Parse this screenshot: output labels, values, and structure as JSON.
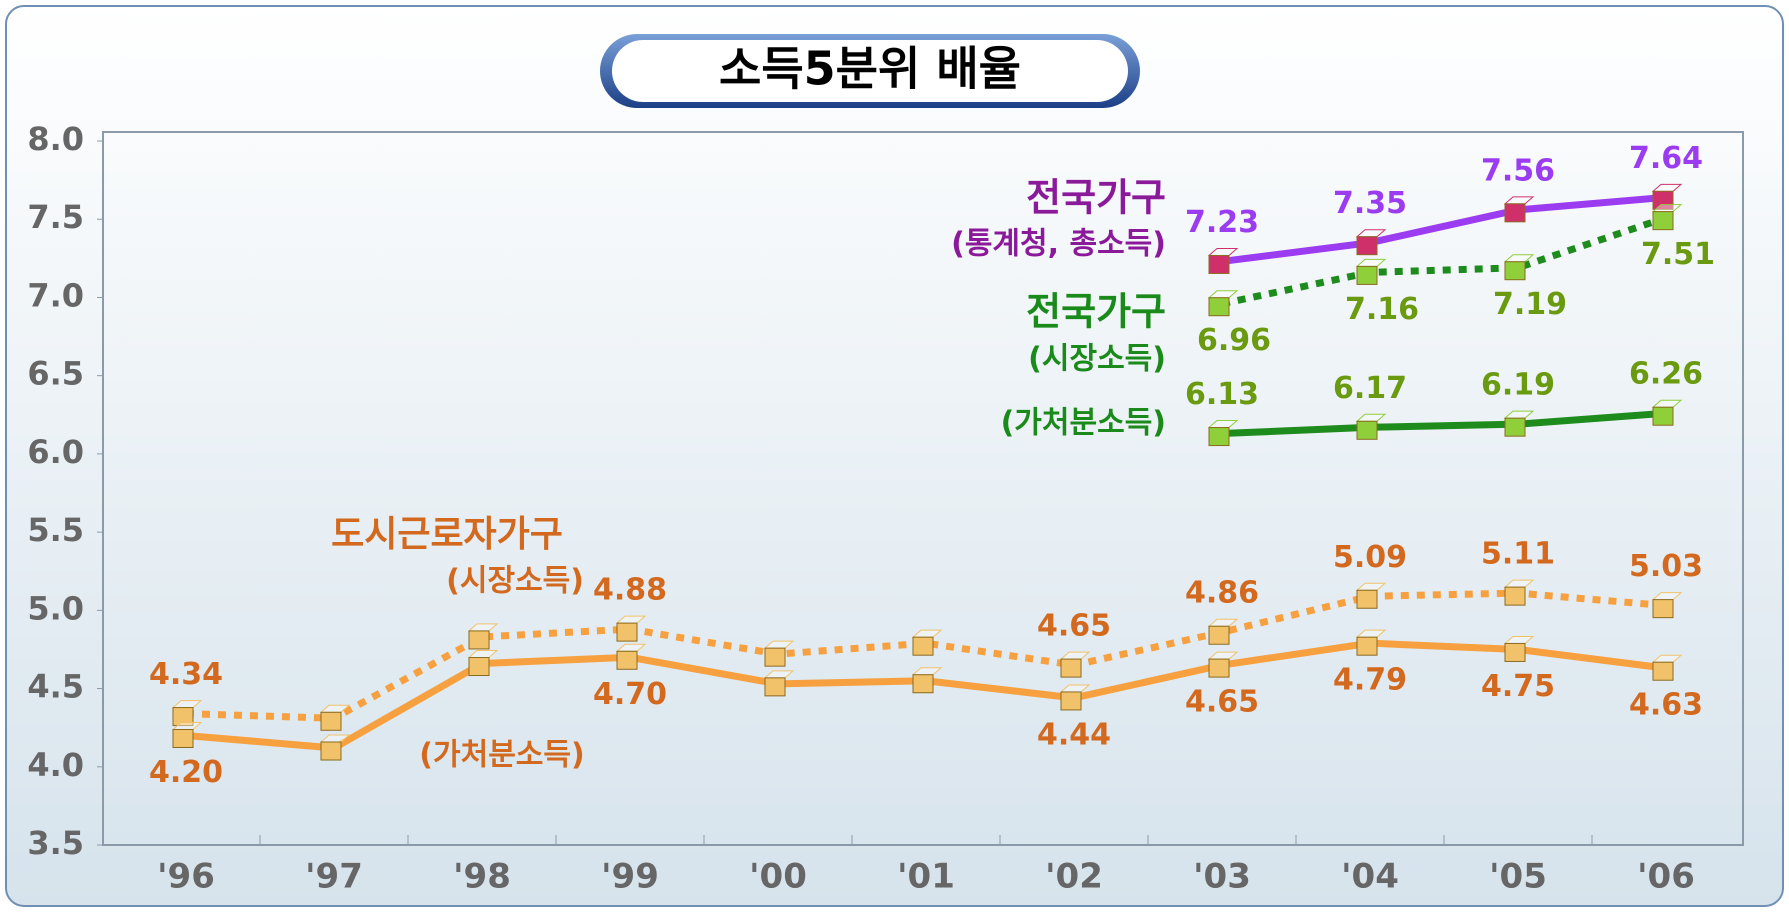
{
  "chart_data": {
    "type": "line",
    "title": "소득5분위 배율",
    "categories": [
      "'96",
      "'97",
      "'98",
      "'99",
      "'00",
      "'01",
      "'02",
      "'03",
      "'04",
      "'05",
      "'06"
    ],
    "ylim": [
      3.5,
      8.0
    ],
    "yticks": [
      3.5,
      {
        "value": 4,
        "label": "4.0"
      },
      4.5,
      {
        "value": 5,
        "label": "5.0"
      },
      5.5,
      {
        "value": 6,
        "label": "6.0"
      },
      6.5,
      {
        "value": 7,
        "label": "7.0"
      },
      7.5,
      {
        "value": 8,
        "label": "8.0"
      }
    ],
    "annotations": [
      "도시근로자가구",
      "전국가구",
      "전국가구"
    ],
    "series": [
      {
        "name": "(시장소득)",
        "color": "#f7a040",
        "label_color": "#d2691e",
        "marker_color": "#f2c26a",
        "dashed": true,
        "values": [
          4.34,
          4.31,
          4.83,
          4.88,
          4.72,
          4.79,
          4.65,
          4.86,
          5.09,
          5.11,
          5.03
        ],
        "value_labels": [
          "4.34",
          null,
          null,
          "4.88",
          null,
          null,
          "4.65",
          "4.86",
          "5.09",
          "5.11",
          "5.03"
        ]
      },
      {
        "name": "(가처분소득)",
        "color": "#f7a040",
        "label_color": "#d2691e",
        "marker_color": "#f2c26a",
        "dashed": false,
        "values": [
          4.2,
          4.12,
          4.66,
          4.7,
          4.53,
          4.55,
          4.44,
          4.65,
          4.79,
          4.75,
          4.63
        ],
        "value_labels": [
          "4.20",
          null,
          null,
          "4.70",
          null,
          null,
          "4.44",
          "4.65",
          "4.79",
          "4.75",
          "4.63"
        ]
      },
      {
        "name": "(통계청, 총소득)",
        "color": "#9b3cf0",
        "label_color": "#9b3cf0",
        "marker_color": "#d0306a",
        "dashed": false,
        "values": [
          null,
          null,
          null,
          null,
          null,
          null,
          null,
          7.23,
          7.35,
          7.56,
          7.64
        ],
        "value_labels": [
          null,
          null,
          null,
          null,
          null,
          null,
          null,
          "7.23",
          "7.35",
          "7.56",
          "7.64"
        ]
      },
      {
        "name": "(시장소득)",
        "color": "#1d8c1d",
        "label_color": "#6a9a10",
        "marker_color": "#8fcf3a",
        "dashed": true,
        "values": [
          null,
          null,
          null,
          null,
          null,
          null,
          null,
          6.96,
          7.16,
          7.19,
          7.51
        ],
        "value_labels": [
          null,
          null,
          null,
          null,
          null,
          null,
          null,
          "6.96",
          "7.16",
          "7.19",
          "7.51"
        ]
      },
      {
        "name": "(가처분소득)",
        "color": "#1d8c1d",
        "label_color": "#6a9a10",
        "marker_color": "#8fcf3a",
        "dashed": false,
        "values": [
          null,
          null,
          null,
          null,
          null,
          null,
          null,
          6.13,
          6.17,
          6.19,
          6.26
        ],
        "value_labels": [
          null,
          null,
          null,
          null,
          null,
          null,
          null,
          "6.13",
          "6.17",
          "6.19",
          "6.26"
        ]
      }
    ]
  }
}
